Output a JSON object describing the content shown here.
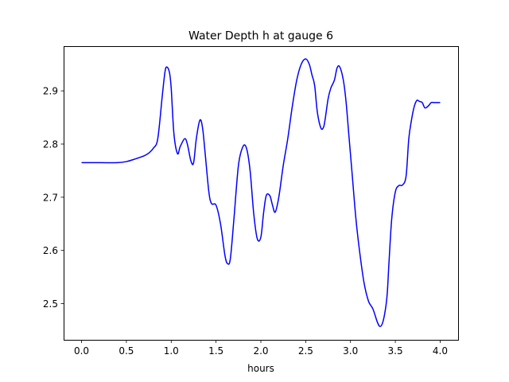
{
  "chart_data": {
    "type": "line",
    "title": "Water Depth h at gauge 6",
    "xlabel": "hours",
    "ylabel": "",
    "xlim": [
      -0.2,
      4.2
    ],
    "ylim": [
      2.432,
      2.984
    ],
    "xticks": [
      0.0,
      0.5,
      1.0,
      1.5,
      2.0,
      2.5,
      3.0,
      3.5,
      4.0
    ],
    "xtick_labels": [
      "0.0",
      "0.5",
      "1.0",
      "1.5",
      "2.0",
      "2.5",
      "3.0",
      "3.5",
      "4.0"
    ],
    "yticks": [
      2.5,
      2.6,
      2.7,
      2.8,
      2.9
    ],
    "ytick_labels": [
      "2.5",
      "2.6",
      "2.7",
      "2.8",
      "2.9"
    ],
    "grid": false,
    "series": [
      {
        "color": "#0000ff",
        "x": [
          0.0,
          0.2,
          0.4,
          0.5,
          0.6,
          0.7,
          0.75,
          0.8,
          0.85,
          0.9,
          0.93,
          0.95,
          0.98,
          1.0,
          1.03,
          1.07,
          1.1,
          1.15,
          1.18,
          1.22,
          1.25,
          1.28,
          1.32,
          1.35,
          1.38,
          1.42,
          1.45,
          1.5,
          1.55,
          1.6,
          1.63,
          1.66,
          1.7,
          1.75,
          1.8,
          1.84,
          1.88,
          1.92,
          1.96,
          2.0,
          2.03,
          2.06,
          2.1,
          2.13,
          2.16,
          2.2,
          2.25,
          2.3,
          2.35,
          2.4,
          2.45,
          2.5,
          2.54,
          2.57,
          2.6,
          2.63,
          2.67,
          2.7,
          2.72,
          2.75,
          2.78,
          2.82,
          2.85,
          2.88,
          2.92,
          2.95,
          2.98,
          3.02,
          3.06,
          3.1,
          3.15,
          3.2,
          3.25,
          3.3,
          3.33,
          3.36,
          3.39,
          3.41,
          3.43,
          3.46,
          3.5,
          3.54,
          3.58,
          3.62,
          3.65,
          3.68,
          3.71,
          3.74,
          3.77,
          3.8,
          3.83,
          3.87,
          3.9,
          3.93,
          3.96,
          4.0
        ],
        "y": [
          2.765,
          2.765,
          2.765,
          2.767,
          2.772,
          2.778,
          2.783,
          2.792,
          2.81,
          2.89,
          2.935,
          2.945,
          2.935,
          2.905,
          2.82,
          2.782,
          2.795,
          2.81,
          2.8,
          2.768,
          2.765,
          2.81,
          2.845,
          2.83,
          2.78,
          2.71,
          2.688,
          2.685,
          2.65,
          2.59,
          2.575,
          2.585,
          2.66,
          2.76,
          2.795,
          2.792,
          2.75,
          2.67,
          2.622,
          2.625,
          2.67,
          2.703,
          2.703,
          2.685,
          2.672,
          2.7,
          2.76,
          2.81,
          2.87,
          2.92,
          2.95,
          2.96,
          2.95,
          2.93,
          2.91,
          2.86,
          2.83,
          2.832,
          2.85,
          2.885,
          2.905,
          2.92,
          2.943,
          2.945,
          2.92,
          2.88,
          2.82,
          2.74,
          2.66,
          2.6,
          2.54,
          2.505,
          2.49,
          2.465,
          2.457,
          2.465,
          2.49,
          2.52,
          2.58,
          2.66,
          2.71,
          2.722,
          2.723,
          2.74,
          2.81,
          2.845,
          2.87,
          2.882,
          2.88,
          2.878,
          2.868,
          2.872,
          2.878,
          2.878,
          2.878,
          2.878
        ]
      }
    ]
  }
}
